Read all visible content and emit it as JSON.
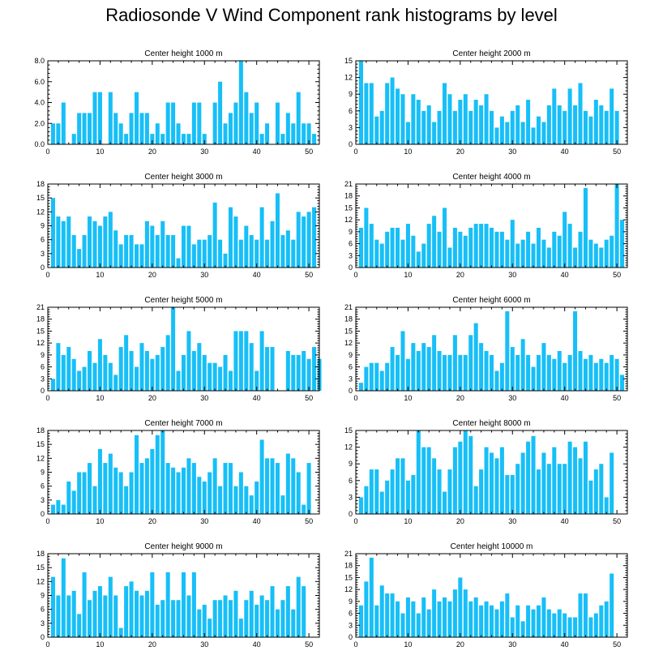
{
  "title": "Radiosonde V Wind Component rank histograms by level",
  "colors": {
    "bar": "#17bff7",
    "axis": "#000000"
  },
  "chart_data": [
    {
      "type": "bar",
      "title": "Center height 1000 m",
      "x": [
        0,
        1,
        2,
        3,
        4,
        5,
        6,
        7,
        8,
        9,
        10,
        11,
        12,
        13,
        14,
        15,
        16,
        17,
        18,
        19,
        20,
        21,
        22,
        23,
        24,
        25,
        26,
        27,
        28,
        29,
        30,
        31,
        32,
        33,
        34,
        35,
        36,
        37,
        38,
        39,
        40,
        41,
        42,
        43,
        44,
        45,
        46,
        47,
        48,
        49,
        50,
        51
      ],
      "values": [
        2,
        2,
        4,
        0,
        1,
        3,
        3,
        3,
        5,
        5,
        0,
        5,
        3,
        2,
        1,
        3,
        5,
        3,
        3,
        1,
        2,
        1,
        4,
        4,
        2,
        1,
        1,
        4,
        4,
        1,
        0,
        4,
        6,
        2,
        3,
        4,
        8,
        5,
        3,
        4,
        1,
        2,
        0,
        4,
        1,
        3,
        2,
        5,
        2,
        2,
        1,
        0
      ],
      "ylim": [
        0,
        8
      ],
      "yticks": [
        "0.0",
        "2.0",
        "4.0",
        "6.0",
        "8.0"
      ],
      "xticks": [
        "0",
        "10",
        "20",
        "30",
        "40",
        "50"
      ]
    },
    {
      "type": "bar",
      "title": "Center height 2000 m",
      "x": [
        0,
        1,
        2,
        3,
        4,
        5,
        6,
        7,
        8,
        9,
        10,
        11,
        12,
        13,
        14,
        15,
        16,
        17,
        18,
        19,
        20,
        21,
        22,
        23,
        24,
        25,
        26,
        27,
        28,
        29,
        30,
        31,
        32,
        33,
        34,
        35,
        36,
        37,
        38,
        39,
        40,
        41,
        42,
        43,
        44,
        45,
        46,
        47,
        48,
        49,
        50,
        51
      ],
      "values": [
        15,
        11,
        11,
        5,
        6,
        11,
        12,
        10,
        9,
        4,
        9,
        8,
        6,
        7,
        4,
        6,
        11,
        9,
        6,
        8,
        9,
        6,
        8,
        7,
        9,
        6,
        3,
        5,
        4,
        6,
        7,
        4,
        8,
        3,
        5,
        4,
        7,
        10,
        7,
        6,
        10,
        7,
        11,
        6,
        5,
        8,
        7,
        6,
        10,
        6,
        0,
        0
      ],
      "ylim": [
        0,
        15
      ],
      "yticks": [
        "0",
        "3",
        "6",
        "9",
        "12",
        "15"
      ],
      "xticks": [
        "0",
        "10",
        "20",
        "30",
        "40",
        "50"
      ]
    },
    {
      "type": "bar",
      "title": "Center height 3000 m",
      "x": [
        0,
        1,
        2,
        3,
        4,
        5,
        6,
        7,
        8,
        9,
        10,
        11,
        12,
        13,
        14,
        15,
        16,
        17,
        18,
        19,
        20,
        21,
        22,
        23,
        24,
        25,
        26,
        27,
        28,
        29,
        30,
        31,
        32,
        33,
        34,
        35,
        36,
        37,
        38,
        39,
        40,
        41,
        42,
        43,
        44,
        45,
        46,
        47,
        48,
        49,
        50,
        51
      ],
      "values": [
        15,
        11,
        10,
        11,
        7,
        4,
        7,
        11,
        10,
        9,
        11,
        12,
        8,
        5,
        7,
        7,
        5,
        5,
        10,
        9,
        7,
        10,
        7,
        7,
        2,
        9,
        9,
        5,
        6,
        6,
        7,
        14,
        6,
        3,
        13,
        11,
        6,
        9,
        7,
        6,
        13,
        6,
        10,
        16,
        7,
        8,
        6,
        12,
        11,
        12,
        13,
        0
      ],
      "ylim": [
        0,
        18
      ],
      "yticks": [
        "0",
        "3",
        "6",
        "9",
        "12",
        "15",
        "18"
      ],
      "xticks": [
        "0",
        "10",
        "20",
        "30",
        "40",
        "50"
      ]
    },
    {
      "type": "bar",
      "title": "Center height 4000 m",
      "x": [
        0,
        1,
        2,
        3,
        4,
        5,
        6,
        7,
        8,
        9,
        10,
        11,
        12,
        13,
        14,
        15,
        16,
        17,
        18,
        19,
        20,
        21,
        22,
        23,
        24,
        25,
        26,
        27,
        28,
        29,
        30,
        31,
        32,
        33,
        34,
        35,
        36,
        37,
        38,
        39,
        40,
        41,
        42,
        43,
        44,
        45,
        46,
        47,
        48,
        49,
        50,
        51
      ],
      "values": [
        10,
        15,
        11,
        7,
        6,
        9,
        10,
        10,
        7,
        11,
        8,
        4,
        6,
        11,
        13,
        9,
        15,
        5,
        10,
        9,
        8,
        10,
        11,
        11,
        11,
        10,
        9,
        9,
        7,
        12,
        6,
        7,
        9,
        6,
        10,
        7,
        5,
        9,
        8,
        14,
        11,
        5,
        9,
        20,
        7,
        6,
        5,
        7,
        8,
        21,
        12,
        0
      ],
      "ylim": [
        0,
        21
      ],
      "yticks": [
        "0",
        "3",
        "6",
        "9",
        "12",
        "15",
        "18",
        "21"
      ],
      "xticks": [
        "0",
        "10",
        "20",
        "30",
        "40",
        "50"
      ]
    },
    {
      "type": "bar",
      "title": "Center height 5000 m",
      "x": [
        0,
        1,
        2,
        3,
        4,
        5,
        6,
        7,
        8,
        9,
        10,
        11,
        12,
        13,
        14,
        15,
        16,
        17,
        18,
        19,
        20,
        21,
        22,
        23,
        24,
        25,
        26,
        27,
        28,
        29,
        30,
        31,
        32,
        33,
        34,
        35,
        36,
        37,
        38,
        39,
        40,
        41,
        42,
        43,
        44,
        45,
        46,
        47,
        48,
        49,
        50,
        51
      ],
      "values": [
        3,
        12,
        9,
        11,
        8,
        5,
        6,
        10,
        7,
        13,
        9,
        7,
        4,
        11,
        14,
        10,
        6,
        12,
        10,
        8,
        9,
        11,
        14,
        21,
        5,
        9,
        15,
        10,
        12,
        9,
        7,
        7,
        6,
        9,
        5,
        15,
        15,
        15,
        12,
        5,
        15,
        11,
        11,
        0,
        0,
        10,
        9,
        9,
        10,
        8,
        11,
        8
      ],
      "ylim": [
        0,
        21
      ],
      "yticks": [
        "0",
        "3",
        "6",
        "9",
        "12",
        "15",
        "18",
        "21"
      ],
      "xticks": [
        "0",
        "10",
        "20",
        "30",
        "40",
        "50"
      ]
    },
    {
      "type": "bar",
      "title": "Center height 6000 m",
      "x": [
        0,
        1,
        2,
        3,
        4,
        5,
        6,
        7,
        8,
        9,
        10,
        11,
        12,
        13,
        14,
        15,
        16,
        17,
        18,
        19,
        20,
        21,
        22,
        23,
        24,
        25,
        26,
        27,
        28,
        29,
        30,
        31,
        32,
        33,
        34,
        35,
        36,
        37,
        38,
        39,
        40,
        41,
        42,
        43,
        44,
        45,
        46,
        47,
        48,
        49,
        50,
        51
      ],
      "values": [
        2,
        6,
        7,
        7,
        5,
        7,
        11,
        9,
        15,
        8,
        12,
        10,
        12,
        11,
        14,
        10,
        9,
        9,
        14,
        9,
        9,
        14,
        17,
        12,
        10,
        9,
        5,
        7,
        20,
        11,
        9,
        13,
        9,
        6,
        9,
        12,
        9,
        8,
        10,
        7,
        9,
        20,
        10,
        8,
        9,
        7,
        8,
        7,
        9,
        8,
        4,
        0
      ],
      "ylim": [
        0,
        21
      ],
      "yticks": [
        "0",
        "3",
        "6",
        "9",
        "12",
        "15",
        "18",
        "21"
      ],
      "xticks": [
        "0",
        "10",
        "20",
        "30",
        "40",
        "50"
      ]
    },
    {
      "type": "bar",
      "title": "Center height 7000 m",
      "x": [
        0,
        1,
        2,
        3,
        4,
        5,
        6,
        7,
        8,
        9,
        10,
        11,
        12,
        13,
        14,
        15,
        16,
        17,
        18,
        19,
        20,
        21,
        22,
        23,
        24,
        25,
        26,
        27,
        28,
        29,
        30,
        31,
        32,
        33,
        34,
        35,
        36,
        37,
        38,
        39,
        40,
        41,
        42,
        43,
        44,
        45,
        46,
        47,
        48,
        49,
        50,
        51
      ],
      "values": [
        2,
        3,
        2,
        7,
        5,
        9,
        9,
        11,
        6,
        14,
        11,
        13,
        10,
        9,
        6,
        9,
        17,
        11,
        12,
        14,
        17,
        18,
        11,
        10,
        9,
        10,
        12,
        11,
        8,
        7,
        9,
        12,
        6,
        11,
        11,
        6,
        9,
        6,
        4,
        7,
        16,
        12,
        12,
        11,
        4,
        13,
        12,
        9,
        2,
        11,
        0,
        0
      ],
      "ylim": [
        0,
        18
      ],
      "yticks": [
        "0",
        "3",
        "6",
        "9",
        "12",
        "15",
        "18"
      ],
      "xticks": [
        "0",
        "10",
        "20",
        "30",
        "40",
        "50"
      ]
    },
    {
      "type": "bar",
      "title": "Center height 8000 m",
      "x": [
        0,
        1,
        2,
        3,
        4,
        5,
        6,
        7,
        8,
        9,
        10,
        11,
        12,
        13,
        14,
        15,
        16,
        17,
        18,
        19,
        20,
        21,
        22,
        23,
        24,
        25,
        26,
        27,
        28,
        29,
        30,
        31,
        32,
        33,
        34,
        35,
        36,
        37,
        38,
        39,
        40,
        41,
        42,
        43,
        44,
        45,
        46,
        47,
        48,
        49,
        50,
        51
      ],
      "values": [
        3,
        5,
        8,
        8,
        4,
        6,
        8,
        10,
        10,
        6,
        7,
        15,
        12,
        12,
        10,
        8,
        4,
        8,
        12,
        13,
        15,
        14,
        5,
        8,
        12,
        11,
        10,
        12,
        7,
        7,
        9,
        11,
        13,
        14,
        8,
        11,
        9,
        12,
        9,
        9,
        13,
        12,
        10,
        13,
        6,
        8,
        9,
        3,
        11,
        0,
        0,
        0
      ],
      "ylim": [
        0,
        15
      ],
      "yticks": [
        "0",
        "3",
        "6",
        "9",
        "12",
        "15"
      ],
      "xticks": [
        "0",
        "10",
        "20",
        "30",
        "40",
        "50"
      ]
    },
    {
      "type": "bar",
      "title": "Center height 9000 m",
      "x": [
        0,
        1,
        2,
        3,
        4,
        5,
        6,
        7,
        8,
        9,
        10,
        11,
        12,
        13,
        14,
        15,
        16,
        17,
        18,
        19,
        20,
        21,
        22,
        23,
        24,
        25,
        26,
        27,
        28,
        29,
        30,
        31,
        32,
        33,
        34,
        35,
        36,
        37,
        38,
        39,
        40,
        41,
        42,
        43,
        44,
        45,
        46,
        47,
        48,
        49,
        50,
        51
      ],
      "values": [
        13,
        9,
        17,
        9,
        10,
        5,
        14,
        8,
        10,
        11,
        9,
        13,
        9,
        2,
        11,
        12,
        10,
        9,
        10,
        14,
        7,
        8,
        14,
        8,
        8,
        14,
        9,
        14,
        6,
        7,
        4,
        8,
        8,
        9,
        8,
        10,
        4,
        8,
        10,
        7,
        9,
        8,
        11,
        6,
        8,
        11,
        6,
        13,
        11,
        0,
        0,
        0
      ],
      "ylim": [
        0,
        18
      ],
      "yticks": [
        "0",
        "3",
        "6",
        "9",
        "12",
        "15",
        "18"
      ],
      "xticks": [
        "0",
        "10",
        "20",
        "30",
        "40",
        "50"
      ]
    },
    {
      "type": "bar",
      "title": "Center height 10000 m",
      "x": [
        0,
        1,
        2,
        3,
        4,
        5,
        6,
        7,
        8,
        9,
        10,
        11,
        12,
        13,
        14,
        15,
        16,
        17,
        18,
        19,
        20,
        21,
        22,
        23,
        24,
        25,
        26,
        27,
        28,
        29,
        30,
        31,
        32,
        33,
        34,
        35,
        36,
        37,
        38,
        39,
        40,
        41,
        42,
        43,
        44,
        45,
        46,
        47,
        48,
        49,
        50,
        51
      ],
      "values": [
        8,
        14,
        20,
        8,
        13,
        11,
        11,
        9,
        6,
        10,
        9,
        6,
        10,
        7,
        12,
        9,
        10,
        9,
        12,
        15,
        12,
        9,
        10,
        8,
        9,
        8,
        7,
        9,
        11,
        5,
        8,
        4,
        8,
        7,
        8,
        10,
        7,
        6,
        7,
        6,
        5,
        5,
        11,
        11,
        5,
        6,
        8,
        9,
        16,
        0,
        0,
        0
      ],
      "ylim": [
        0,
        21
      ],
      "yticks": [
        "0",
        "3",
        "6",
        "9",
        "12",
        "15",
        "18",
        "21"
      ],
      "xticks": [
        "0",
        "10",
        "20",
        "30",
        "40",
        "50"
      ]
    }
  ]
}
